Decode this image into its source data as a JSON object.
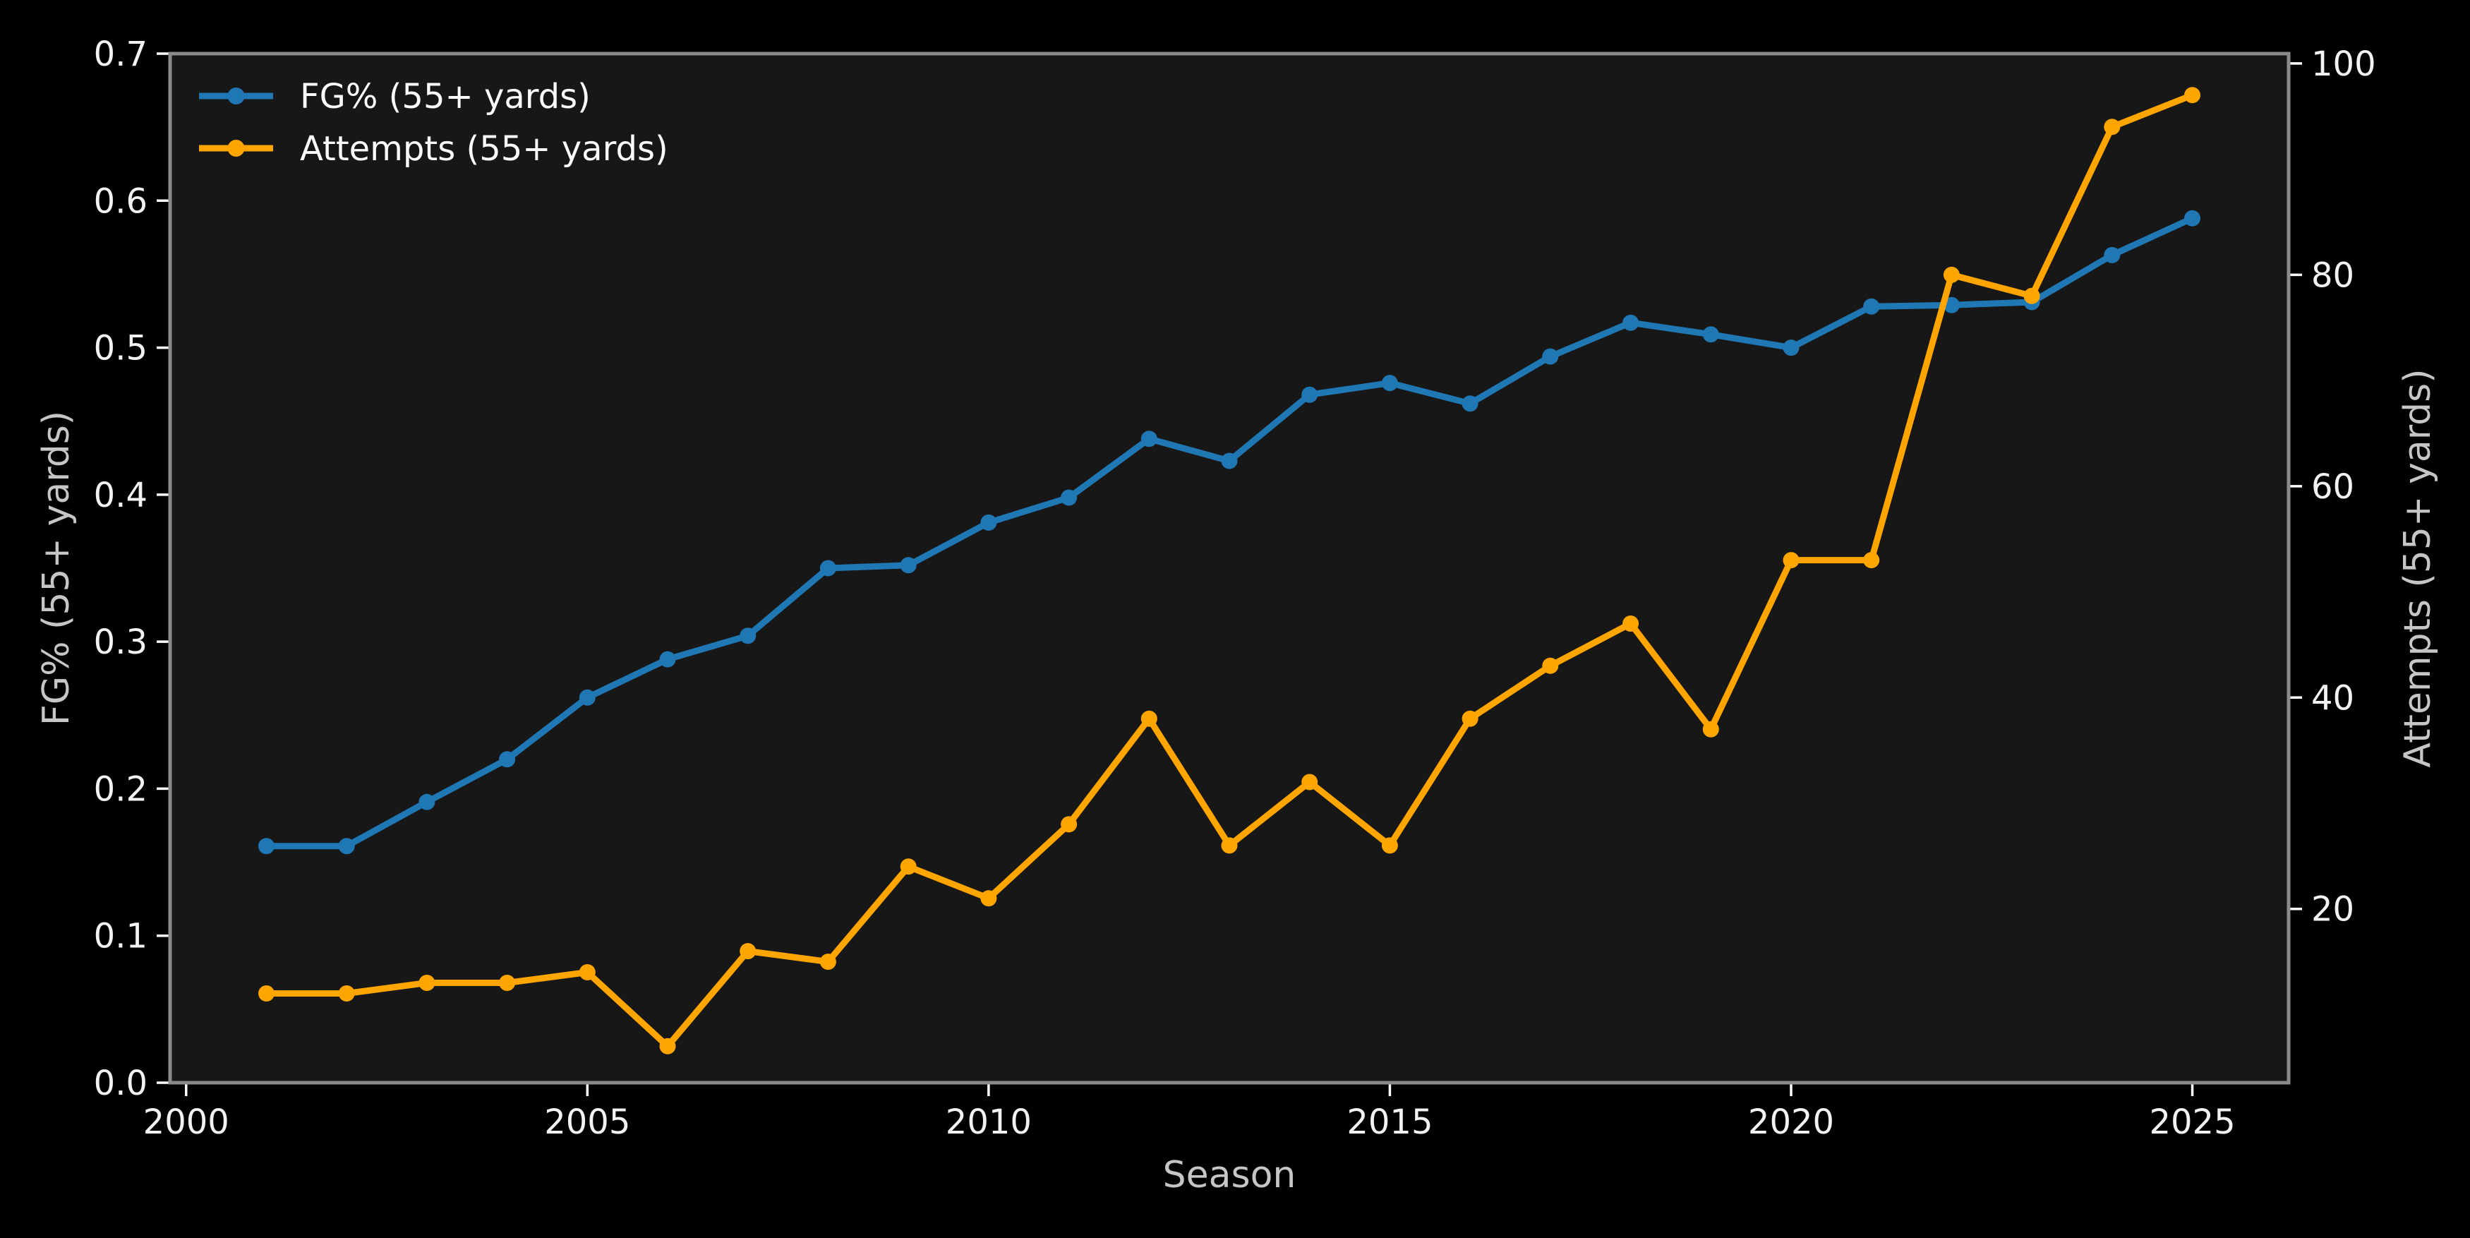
{
  "style": {
    "background": "#000000",
    "plot_background": "#171717",
    "spine_color": "#8a8a8a",
    "tick_color": "#ffffff",
    "tick_label_color": "#f2f2f2",
    "axis_label_color": "#c6c6c6",
    "legend_text_color": "#fafafa"
  },
  "chart_data": {
    "type": "line",
    "title": "",
    "xlabel": "Season",
    "ylabel_left": "FG% (55+ yards)",
    "ylabel_right": "Attempts (55+ yards)",
    "legend_position": "upper left",
    "grid": false,
    "xlim": [
      1999.8,
      2026.2
    ],
    "ylim_left": [
      0.0,
      0.7
    ],
    "ylim_right": [
      3.55,
      100.93
    ],
    "x": [
      2001,
      2002,
      2003,
      2004,
      2005,
      2006,
      2007,
      2008,
      2009,
      2010,
      2011,
      2012,
      2013,
      2014,
      2015,
      2016,
      2017,
      2018,
      2019,
      2020,
      2021,
      2022,
      2023,
      2024,
      2025
    ],
    "series": [
      {
        "name": "FG% (55+ yards)",
        "axis": "left",
        "color": "#1f77b4",
        "marker": "circle",
        "values": [
          0.161,
          0.161,
          0.191,
          0.22,
          0.262,
          0.288,
          0.304,
          0.35,
          0.352,
          0.381,
          0.398,
          0.438,
          0.423,
          0.468,
          0.476,
          0.462,
          0.494,
          0.517,
          0.509,
          0.5,
          0.528,
          0.529,
          0.531,
          0.563,
          0.588
        ]
      },
      {
        "name": "Attempts (55+ yards)",
        "axis": "right",
        "color": "#ffa500",
        "marker": "circle",
        "values": [
          12,
          12,
          13,
          13,
          14,
          7,
          16,
          15,
          24,
          21,
          28,
          38,
          26,
          32,
          26,
          38,
          43,
          47,
          37,
          53,
          53,
          80,
          78,
          94,
          97
        ]
      }
    ],
    "x_ticks": [
      {
        "value": 2000,
        "label": "2000"
      },
      {
        "value": 2005,
        "label": "2005"
      },
      {
        "value": 2010,
        "label": "2010"
      },
      {
        "value": 2015,
        "label": "2015"
      },
      {
        "value": 2020,
        "label": "2020"
      },
      {
        "value": 2025,
        "label": "2025"
      }
    ],
    "left_ticks": [
      {
        "value": 0.0,
        "label": "0.0"
      },
      {
        "value": 0.1,
        "label": "0.1"
      },
      {
        "value": 0.2,
        "label": "0.2"
      },
      {
        "value": 0.3,
        "label": "0.3"
      },
      {
        "value": 0.4,
        "label": "0.4"
      },
      {
        "value": 0.5,
        "label": "0.5"
      },
      {
        "value": 0.6,
        "label": "0.6"
      },
      {
        "value": 0.7,
        "label": "0.7"
      }
    ],
    "right_ticks": [
      {
        "value": 20,
        "label": "20"
      },
      {
        "value": 40,
        "label": "40"
      },
      {
        "value": 60,
        "label": "60"
      },
      {
        "value": 80,
        "label": "80"
      },
      {
        "value": 100,
        "label": "100"
      }
    ]
  }
}
